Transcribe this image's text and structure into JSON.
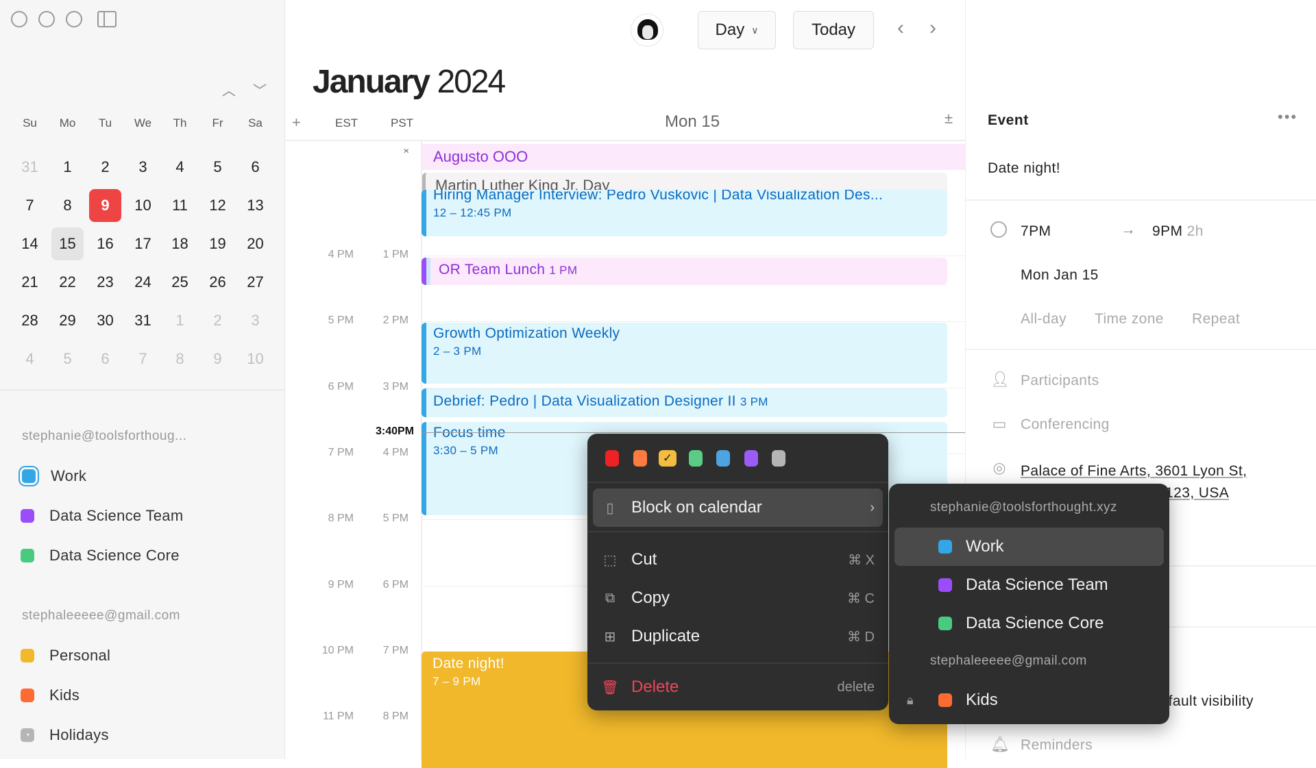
{
  "window": {
    "controls": [
      "close",
      "minimize",
      "zoom"
    ],
    "sidebar_toggle_icon": "sidebar-icon"
  },
  "mini_calendar": {
    "weekdays": [
      "Su",
      "Mo",
      "Tu",
      "We",
      "Th",
      "Fr",
      "Sa"
    ],
    "weeks": [
      [
        "31",
        "1",
        "2",
        "3",
        "4",
        "5",
        "6"
      ],
      [
        "7",
        "8",
        "9",
        "10",
        "11",
        "12",
        "13"
      ],
      [
        "14",
        "15",
        "16",
        "17",
        "18",
        "19",
        "20"
      ],
      [
        "21",
        "22",
        "23",
        "24",
        "25",
        "26",
        "27"
      ],
      [
        "28",
        "29",
        "30",
        "31",
        "1",
        "2",
        "3"
      ],
      [
        "4",
        "5",
        "6",
        "7",
        "8",
        "9",
        "10"
      ]
    ],
    "today": "9",
    "selected": "15"
  },
  "sidebar": {
    "accounts": [
      {
        "email": "stephanie@toolsforthoug...",
        "calendars": [
          {
            "name": "Work",
            "color": "#33a6e6"
          },
          {
            "name": "Data Science Team",
            "color": "#9b4dfa"
          },
          {
            "name": "Data Science Core",
            "color": "#48cb7e"
          }
        ]
      },
      {
        "email": "stephaleeeee@gmail.com",
        "calendars": [
          {
            "name": "Personal",
            "color": "#f2b92c"
          },
          {
            "name": "Kids",
            "color": "#fe6b32"
          },
          {
            "name": "Holidays",
            "color": "#b5b5b5"
          }
        ]
      }
    ]
  },
  "header": {
    "month": "January",
    "year": "2024",
    "view": "Day",
    "today_label": "Today",
    "day_label": "Mon 15",
    "tz1": "EST",
    "tz2": "PST"
  },
  "hours": {
    "est": [
      "4 PM",
      "5 PM",
      "6 PM",
      "7 PM",
      "8 PM",
      "9 PM",
      "10 PM",
      "11 PM"
    ],
    "pst": [
      "1 PM",
      "2 PM",
      "3 PM",
      "4 PM",
      "5 PM",
      "6 PM",
      "7 PM",
      "8 PM"
    ],
    "now": "3:40PM"
  },
  "all_day": [
    {
      "title": "Augusto OOO"
    },
    {
      "title": "Martin Luther King Jr. Day"
    }
  ],
  "events": [
    {
      "title": "Hiring Manager Interview: Pedro Vuskovic | Data Visualization Des...",
      "time": "12 – 12:45 PM"
    },
    {
      "title": "OR Team Lunch",
      "time": "1 PM"
    },
    {
      "title": "Growth Optimization Weekly",
      "time": "2 – 3 PM"
    },
    {
      "title": "Debrief: Pedro | Data Visualization Designer II",
      "time": "3 PM"
    },
    {
      "title": "Focus time",
      "time": "3:30 – 5 PM"
    },
    {
      "title": "Date night!",
      "time": "7 – 9 PM"
    }
  ],
  "panel": {
    "heading": "Event",
    "title": "Date night!",
    "start": "7PM",
    "end": "9PM",
    "duration": "2h",
    "date": "Mon Jan 15",
    "options": [
      "All-day",
      "Time zone",
      "Repeat"
    ],
    "participants": "Participants",
    "conferencing": "Conferencing",
    "location_line1": "Palace of Fine Arts, 3601 Lyon St,",
    "location_line2": "San Francisco, CA 94123, USA",
    "visibility": "Default visibility",
    "reminders": "Reminders"
  },
  "context_menu": {
    "colors": [
      "#ee2222",
      "#fd7a40",
      "#f4bd3e",
      "#5bcc85",
      "#4ca5e0",
      "#9a5cf5",
      "#b5b5b5"
    ],
    "selected_color": "#f4bd3e",
    "block": "Block on calendar",
    "items": [
      {
        "label": "Cut",
        "shortcut": "⌘ X"
      },
      {
        "label": "Copy",
        "shortcut": "⌘ C"
      },
      {
        "label": "Duplicate",
        "shortcut": "⌘ D"
      }
    ],
    "delete": "Delete",
    "delete_shortcut": "delete"
  },
  "submenu": {
    "account1": "stephanie@toolsforthought.xyz",
    "cals1": [
      {
        "name": "Work",
        "color": "#33a6e6"
      },
      {
        "name": "Data Science Team",
        "color": "#9b4dfa"
      },
      {
        "name": "Data Science Core",
        "color": "#48cb7e"
      }
    ],
    "account2": "stephaleeeee@gmail.com",
    "cals2": [
      {
        "name": "Kids",
        "color": "#fe6b32"
      }
    ]
  }
}
